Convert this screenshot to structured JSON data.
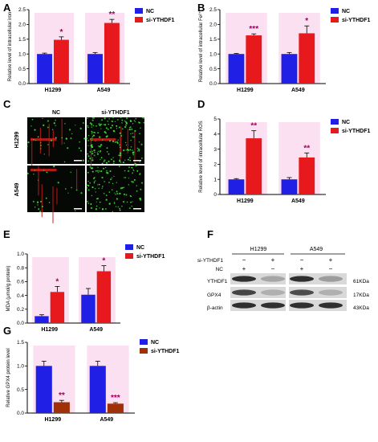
{
  "colors": {
    "nc": "#1f1fe6",
    "si": "#e8191c",
    "si_dark": "#a03008",
    "pink": "#f7c6e8",
    "axis": "#000000",
    "star": "#000000",
    "star_pink": "#a0005a"
  },
  "chart_data": [
    {
      "panel": "A",
      "type": "bar",
      "categories": [
        "H1299",
        "A549"
      ],
      "series": [
        {
          "name": "NC",
          "values": [
            1.0,
            1.0
          ],
          "errors": [
            0.03,
            0.05
          ]
        },
        {
          "name": "si-YTHDF1",
          "values": [
            1.48,
            2.05
          ],
          "errors": [
            0.1,
            0.12
          ]
        }
      ],
      "significance": [
        "*",
        "**"
      ],
      "ylabel": "Relative level of intracellular iron",
      "ylim": [
        0,
        2.5
      ],
      "yticks": [
        "0.0",
        "0.5",
        "1.0",
        "1.5",
        "2.0",
        "2.5"
      ],
      "legend": "top-right"
    },
    {
      "panel": "B",
      "type": "bar",
      "categories": [
        "H1299",
        "A549"
      ],
      "series": [
        {
          "name": "NC",
          "values": [
            1.0,
            1.0
          ],
          "errors": [
            0.02,
            0.05
          ]
        },
        {
          "name": "si-YTHDF1",
          "values": [
            1.63,
            1.7
          ],
          "errors": [
            0.05,
            0.25
          ]
        }
      ],
      "significance": [
        "***",
        "*"
      ],
      "ylabel": "Relative level of intracellular Fe²⁺",
      "ylim": [
        0,
        2.5
      ],
      "yticks": [
        "0.0",
        "0.5",
        "1.0",
        "1.5",
        "2.0",
        "2.5"
      ],
      "legend": "top-right"
    },
    {
      "panel": "D",
      "type": "bar",
      "categories": [
        "H1299",
        "A549"
      ],
      "series": [
        {
          "name": "NC",
          "values": [
            1.0,
            1.0
          ],
          "errors": [
            0.05,
            0.12
          ]
        },
        {
          "name": "si-YTHDF1",
          "values": [
            3.72,
            2.45
          ],
          "errors": [
            0.5,
            0.3
          ]
        }
      ],
      "significance": [
        "**",
        "**"
      ],
      "ylabel": "Relative level of intracellular ROS",
      "ylim": [
        0,
        5
      ],
      "yticks": [
        "0",
        "1",
        "2",
        "3",
        "4",
        "5"
      ],
      "legend": "top-right"
    },
    {
      "panel": "E",
      "type": "bar",
      "categories": [
        "H1299",
        "A549"
      ],
      "series": [
        {
          "name": "NC",
          "values": [
            0.1,
            0.41
          ],
          "errors": [
            0.02,
            0.09
          ]
        },
        {
          "name": "si-YTHDF1",
          "values": [
            0.45,
            0.75
          ],
          "errors": [
            0.08,
            0.08
          ]
        }
      ],
      "significance": [
        "*",
        "*"
      ],
      "ylabel": "MDA (μmol/g protein)",
      "ylim": [
        0,
        1.0
      ],
      "yticks": [
        "0.0",
        "0.2",
        "0.4",
        "0.6",
        "0.8",
        "1.0"
      ],
      "legend": "top-right"
    },
    {
      "panel": "G",
      "type": "bar",
      "categories": [
        "H1299",
        "A549"
      ],
      "series": [
        {
          "name": "NC",
          "values": [
            1.0,
            1.0
          ],
          "errors": [
            0.1,
            0.1
          ]
        },
        {
          "name": "si-YTHDF1",
          "values": [
            0.23,
            0.2
          ],
          "errors": [
            0.04,
            0.02
          ]
        }
      ],
      "significance": [
        "**",
        "***"
      ],
      "ylabel": "Relative GPX4 protein level",
      "ylim": [
        0,
        1.5
      ],
      "yticks": [
        "0.0",
        "0.5",
        "1.0",
        "1.5"
      ],
      "legend": "top-right"
    }
  ],
  "micrographs": {
    "panel": "C",
    "col_labels": [
      "NC",
      "si-YTHDF1"
    ],
    "row_labels": [
      "H1299",
      "A549"
    ]
  },
  "western": {
    "panel": "F",
    "cell_lines": [
      "H1299",
      "A549"
    ],
    "condition_rows": [
      {
        "label": "si-YTHDF1",
        "marks": [
          "−",
          "+",
          "−",
          "+"
        ]
      },
      {
        "label": "NC",
        "marks": [
          "+",
          "−",
          "+",
          "−"
        ]
      }
    ],
    "bands": [
      {
        "protein": "YTHDF1",
        "kda": "61KDa"
      },
      {
        "protein": "GPX4",
        "kda": "17KDa"
      },
      {
        "protein": "β-actin",
        "kda": "43KDa"
      }
    ]
  }
}
